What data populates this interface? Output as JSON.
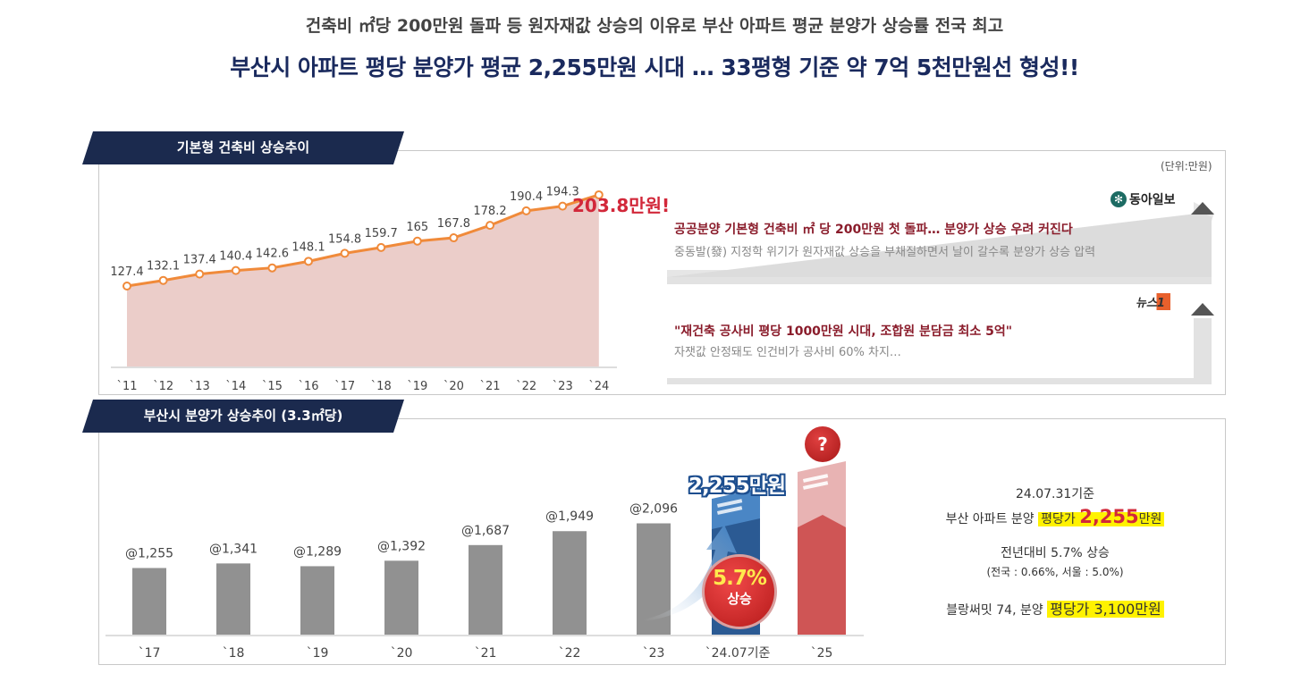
{
  "header": {
    "subtitle": "건축비 ㎡당 200만원 돌파 등 원자재값 상승의 이유로 부산 아파트 평균 분양가 상승률 전국 최고",
    "headline": "부산시 아파트 평당 분양가 평균 2,255만원 시대 … 33평형 기준 약 7억 5천만원선 형성!!"
  },
  "top_panel": {
    "tab_label": "기본형 건축비 상승추이",
    "unit": "(단위:만원)",
    "callout": "203.8만원!",
    "news": [
      {
        "source": "동아일보",
        "title": "공공분양 기본형 건축비 ㎡ 당 200만원 첫 돌파… 분양가 상승 우려 커진다",
        "sub": "중동발(發) 지정학 위기가 원자재값 상승을 부채질하면서 날이 갈수록 분양가 상승 압력"
      },
      {
        "source": "뉴스1",
        "title": "\"재건축 공사비 평당 1000만원 시대, 조합원 분담금 최소 5억\"",
        "sub": "자잿값 안정돼도 인건비가 공사비 60% 차지…"
      }
    ]
  },
  "bottom_panel": {
    "tab_label": "부산시 분양가 상승추이 (3.3㎡당)",
    "callout": "2,255만원",
    "growth_pct": "5.7%",
    "growth_word": "상승",
    "question": "?",
    "summary": {
      "date": "24.07.31기준",
      "line1_pre": "부산 아파트 분양",
      "line1_hl": "평당가",
      "line1_val": "2,255",
      "line1_post": "만원",
      "line2": "전년대비 5.7% 상승",
      "line3": "(전국 : 0.66%, 서울 : 5.0%)",
      "line4_pre": "블랑써밋 74, 분양",
      "line4_hl": "평당가 3,100만원"
    }
  },
  "colors": {
    "navy": "#1b2a4e",
    "orange": "#f08a3a",
    "area": "#e8c4c0",
    "gray_bar": "#919191",
    "blue": "#4a86c5",
    "red": "#cf5555",
    "highlight": "#fff200"
  },
  "chart_data": [
    {
      "type": "area",
      "categories": [
        "`11",
        "`12",
        "`13",
        "`14",
        "`15",
        "`16",
        "`17",
        "`18",
        "`19",
        "`20",
        "`21",
        "`22",
        "`23",
        "`24"
      ],
      "values": [
        127.4,
        132.1,
        137.4,
        140.4,
        142.6,
        148.1,
        154.8,
        159.7,
        165,
        167.8,
        178.2,
        190.4,
        194.3,
        203.8
      ],
      "labels": [
        "127.4",
        "132.1",
        "137.4",
        "140.4",
        "142.6",
        "148.1",
        "154.8",
        "159.7",
        "165",
        "167.8",
        "178.2",
        "190.4",
        "194.3",
        ""
      ],
      "title": "기본형 건축비 상승추이",
      "ylim": [
        60,
        215
      ]
    },
    {
      "type": "bar",
      "categories": [
        "`17",
        "`18",
        "`19",
        "`20",
        "`21",
        "`22",
        "`23",
        "`24.07기준",
        "`25"
      ],
      "values": [
        1255,
        1341,
        1289,
        1392,
        1687,
        1949,
        2096,
        2255,
        null
      ],
      "labels": [
        "@1,255",
        "@1,341",
        "@1,289",
        "@1,392",
        "@1,687",
        "@1,949",
        "@2,096",
        "",
        ""
      ],
      "title": "부산시 분양가 상승추이 (3.3㎡당)",
      "ylim": [
        0,
        3300
      ]
    }
  ]
}
